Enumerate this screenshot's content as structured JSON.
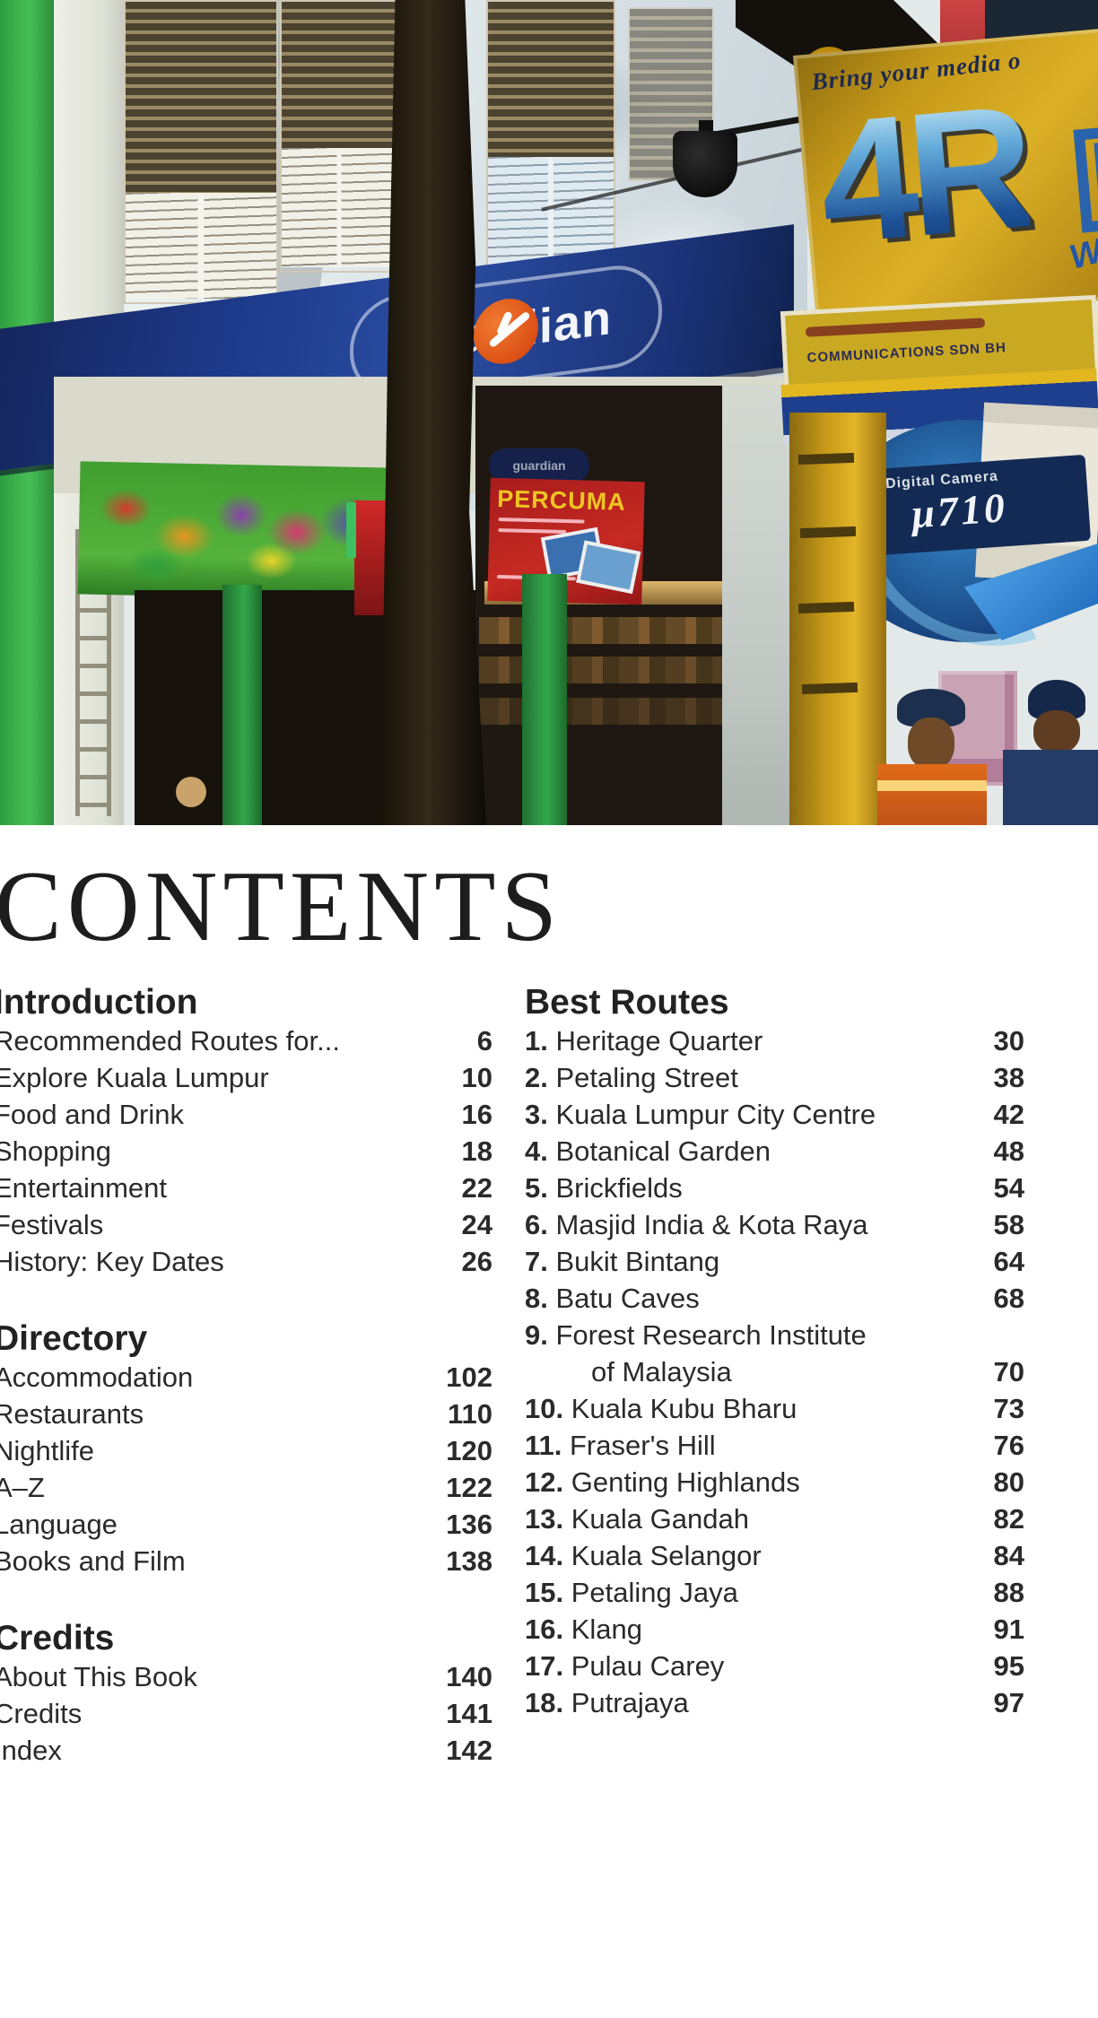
{
  "photo": {
    "awning_brand": "guardian",
    "sign_top_text": "Bring your media o",
    "sign_big_text": "4R",
    "sign_partial_letter": "D",
    "sign_we_text": "WE",
    "comm_sign_text": "COMMUNICATIONS SDN BH",
    "camera_label": "Digital Camera",
    "camera_model": "µ710",
    "red_banner_text": "PERCUMA",
    "colors": {
      "awning_blue": "#1d3a8a",
      "sign_yellow": "#c79b1a",
      "banner_red": "#b02020",
      "wall_green": "#3aab4a",
      "logo_orange": "#da4e14",
      "big_letter_blue": "#2a63ab"
    }
  },
  "toc": {
    "heading": "CONTENTS",
    "left": [
      {
        "title": "Introduction",
        "items": [
          {
            "label": "Recommended Routes for...",
            "page": "6"
          },
          {
            "label": "Explore Kuala Lumpur",
            "page": "10"
          },
          {
            "label": "Food and Drink",
            "page": "16"
          },
          {
            "label": "Shopping",
            "page": "18"
          },
          {
            "label": "Entertainment",
            "page": "22"
          },
          {
            "label": "Festivals",
            "page": "24"
          },
          {
            "label": "History: Key Dates",
            "page": "26"
          }
        ]
      },
      {
        "title": "Directory",
        "items": [
          {
            "label": "Accommodation",
            "page": "102"
          },
          {
            "label": "Restaurants",
            "page": "110"
          },
          {
            "label": "Nightlife",
            "page": "120"
          },
          {
            "label": "A–Z",
            "page": "122"
          },
          {
            "label": "Language",
            "page": "136"
          },
          {
            "label": "Books and Film",
            "page": "138"
          }
        ]
      },
      {
        "title": "Credits",
        "items": [
          {
            "label": "About This Book",
            "page": "140"
          },
          {
            "label": "Credits",
            "page": "141"
          },
          {
            "label": "Index",
            "page": "142"
          }
        ]
      }
    ],
    "right": [
      {
        "title": "Best Routes",
        "items": [
          {
            "num": "1.",
            "label": "Heritage Quarter",
            "page": "30"
          },
          {
            "num": "2.",
            "label": "Petaling Street",
            "page": "38"
          },
          {
            "num": "3.",
            "label": "Kuala Lumpur City Centre",
            "page": "42"
          },
          {
            "num": "4.",
            "label": "Botanical Garden",
            "page": "48"
          },
          {
            "num": "5.",
            "label": "Brickfields",
            "page": "54"
          },
          {
            "num": "6.",
            "label": "Masjid India & Kota Raya",
            "page": "58"
          },
          {
            "num": "7.",
            "label": "Bukit Bintang",
            "page": "64"
          },
          {
            "num": "8.",
            "label": "Batu Caves",
            "page": "68"
          },
          {
            "num": "9.",
            "label": "Forest Research Institute",
            "label2": "of Malaysia",
            "page": "70"
          },
          {
            "num": "10.",
            "label": "Kuala Kubu Bharu",
            "page": "73"
          },
          {
            "num": "11.",
            "label": "Fraser's Hill",
            "page": "76"
          },
          {
            "num": "12.",
            "label": "Genting Highlands",
            "page": "80"
          },
          {
            "num": "13.",
            "label": "Kuala Gandah",
            "page": "82"
          },
          {
            "num": "14.",
            "label": "Kuala Selangor",
            "page": "84"
          },
          {
            "num": "15.",
            "label": "Petaling Jaya",
            "page": "88"
          },
          {
            "num": "16.",
            "label": "Klang",
            "page": "91"
          },
          {
            "num": "17.",
            "label": "Pulau Carey",
            "page": "95"
          },
          {
            "num": "18.",
            "label": "Putrajaya",
            "page": "97"
          }
        ]
      }
    ]
  }
}
